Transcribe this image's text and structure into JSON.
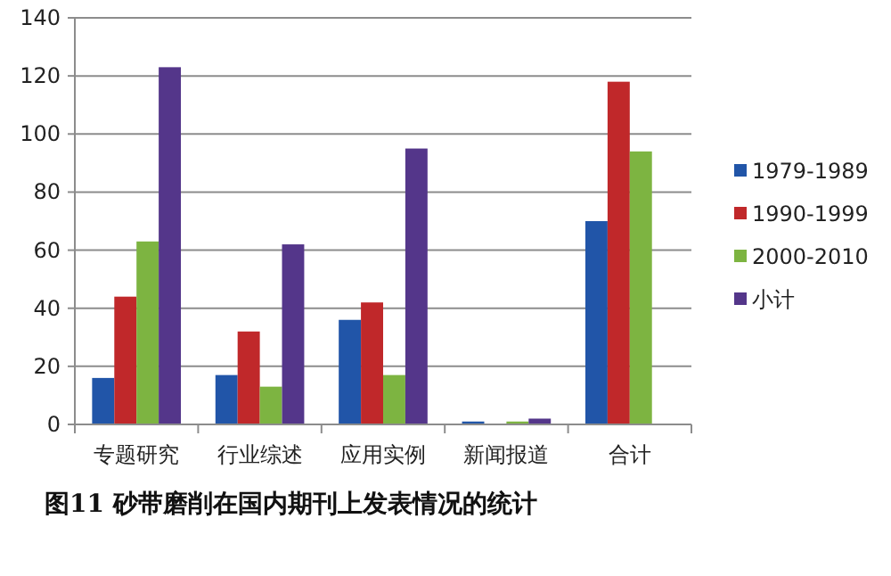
{
  "chart_data": {
    "type": "bar",
    "title": "图11 砂带磨削在国内期刊上发表情况的统计",
    "categories": [
      "专题研究",
      "行业综述",
      "应用实例",
      "新闻报道",
      "合计"
    ],
    "series": [
      {
        "name": "1979-1989",
        "color": "#2155a8",
        "values": [
          16,
          17,
          36,
          1,
          70
        ]
      },
      {
        "name": "1990-1999",
        "color": "#c0282a",
        "values": [
          44,
          32,
          42,
          0,
          118
        ]
      },
      {
        "name": "2000-2010",
        "color": "#7db441",
        "values": [
          63,
          13,
          17,
          1,
          94
        ]
      },
      {
        "name": "小计",
        "color": "#54368a",
        "values": [
          123,
          62,
          95,
          2,
          null
        ]
      }
    ],
    "ylim": [
      0,
      140
    ],
    "yticks": [
      0,
      20,
      40,
      60,
      80,
      100,
      120,
      140
    ],
    "grid": "y",
    "legend": "right"
  }
}
